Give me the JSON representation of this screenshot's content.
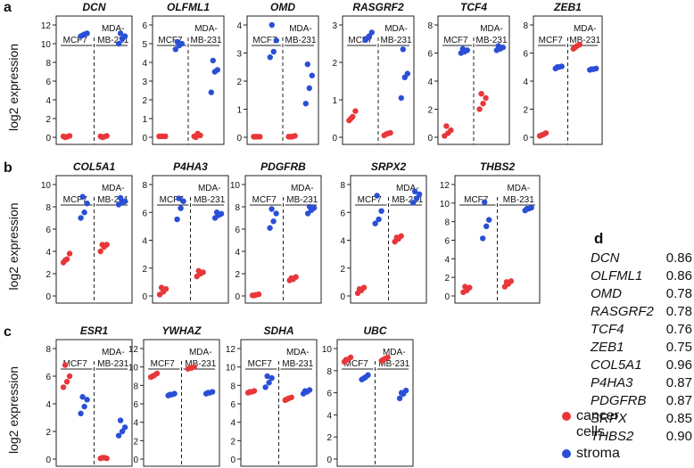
{
  "figure": {
    "ylabel": "log2 expression",
    "group_left": "MCF7",
    "group_right_line1": "MDA-",
    "group_right_line2": "MB-231"
  },
  "legend": {
    "cancer_line1": "cancer",
    "cancer_line2": "cells",
    "stroma": "stroma",
    "cancer_color": "#e8373a",
    "stroma_color": "#2a4fd6"
  },
  "chart_data": [
    {
      "type": "scatter",
      "title": "DCN",
      "panel": "a",
      "ylim": [
        0,
        12
      ],
      "yticks": [
        0,
        2,
        4,
        6,
        8,
        10,
        12
      ],
      "cancer_mcf7": [
        0.1,
        0.05,
        0.15,
        0.0
      ],
      "stroma_mcf7": [
        10.8,
        11.0,
        11.1,
        10.9
      ],
      "cancer_mda": [
        0.1,
        0.05,
        0.15,
        0.0
      ],
      "stroma_mda": [
        10.0,
        10.5,
        10.8,
        11.1
      ]
    },
    {
      "type": "scatter",
      "title": "OLFML1",
      "panel": "a",
      "ylim": [
        0,
        6
      ],
      "yticks": [
        0,
        1,
        2,
        3,
        4,
        5,
        6
      ],
      "cancer_mcf7": [
        0.05,
        0.05,
        0.05,
        0.05
      ],
      "stroma_mcf7": [
        4.7,
        4.9,
        5.0,
        5.1
      ],
      "cancer_mda": [
        0.05,
        0.2,
        0.1,
        0.0
      ],
      "stroma_mda": [
        2.4,
        3.5,
        3.6,
        4.1
      ]
    },
    {
      "type": "scatter",
      "title": "OMD",
      "panel": "a",
      "ylim": [
        0,
        4
      ],
      "yticks": [
        0,
        1,
        2,
        3,
        4
      ],
      "cancer_mcf7": [
        0.02,
        0.02,
        0.02,
        0.02
      ],
      "stroma_mcf7": [
        2.85,
        3.05,
        3.45,
        4.0
      ],
      "cancer_mda": [
        0.02,
        0.02,
        0.05,
        0.02
      ],
      "stroma_mda": [
        1.2,
        1.75,
        2.2,
        2.6
      ]
    },
    {
      "type": "scatter",
      "title": "RASGRF2",
      "panel": "a",
      "ylim": [
        0,
        3
      ],
      "yticks": [
        0,
        1,
        2,
        3
      ],
      "cancer_mcf7": [
        0.45,
        0.55,
        0.7,
        0.5
      ],
      "stroma_mcf7": [
        2.6,
        2.7,
        2.8,
        2.65
      ],
      "cancer_mda": [
        0.05,
        0.1,
        0.12,
        0.08
      ],
      "stroma_mda": [
        1.05,
        1.6,
        1.7,
        2.35
      ]
    },
    {
      "type": "scatter",
      "title": "TCF4",
      "panel": "a",
      "ylim": [
        0,
        8
      ],
      "yticks": [
        0,
        2,
        4,
        6,
        8
      ],
      "cancer_mcf7": [
        0.1,
        0.3,
        0.5,
        0.8
      ],
      "stroma_mcf7": [
        6.0,
        6.1,
        6.2,
        6.3
      ],
      "cancer_mda": [
        2.0,
        2.4,
        2.8,
        3.1
      ],
      "stroma_mda": [
        6.2,
        6.3,
        6.4,
        6.5
      ]
    },
    {
      "type": "scatter",
      "title": "ZEB1",
      "panel": "a",
      "ylim": [
        0,
        8
      ],
      "yticks": [
        0,
        2,
        4,
        6,
        8
      ],
      "cancer_mcf7": [
        0.1,
        0.2,
        0.3,
        0.15
      ],
      "stroma_mcf7": [
        4.9,
        5.0,
        5.05,
        5.0
      ],
      "cancer_mda": [
        6.3,
        6.5,
        6.6,
        6.4
      ],
      "stroma_mda": [
        4.8,
        4.85,
        4.9,
        4.85
      ]
    },
    {
      "type": "scatter",
      "title": "COL5A1",
      "panel": "b",
      "ylim": [
        0,
        10
      ],
      "yticks": [
        0,
        2,
        4,
        6,
        8,
        10
      ],
      "cancer_mcf7": [
        3.0,
        3.3,
        3.8,
        3.2
      ],
      "stroma_mcf7": [
        7.0,
        7.5,
        8.3,
        8.9
      ],
      "cancer_mda": [
        4.0,
        4.4,
        4.6,
        4.6
      ],
      "stroma_mda": [
        8.2,
        8.4,
        8.5,
        8.8
      ]
    },
    {
      "type": "scatter",
      "title": "P4HA3",
      "panel": "b",
      "ylim": [
        0,
        8
      ],
      "yticks": [
        0,
        2,
        4,
        6,
        8
      ],
      "cancer_mcf7": [
        0.1,
        0.3,
        0.5,
        0.6
      ],
      "stroma_mcf7": [
        5.5,
        6.3,
        6.8,
        7.0
      ],
      "cancer_mda": [
        1.4,
        1.6,
        1.7,
        1.8
      ],
      "stroma_mda": [
        5.6,
        5.8,
        5.9,
        6.0
      ]
    },
    {
      "type": "scatter",
      "title": "PDGFRB",
      "panel": "b",
      "ylim": [
        0,
        10
      ],
      "yticks": [
        0,
        2,
        4,
        6,
        8,
        10
      ],
      "cancer_mcf7": [
        0.05,
        0.1,
        0.15,
        0.05
      ],
      "stroma_mcf7": [
        6.1,
        6.7,
        7.4,
        7.8
      ],
      "cancer_mda": [
        1.4,
        1.5,
        1.7,
        1.6
      ],
      "stroma_mda": [
        7.4,
        7.7,
        7.9,
        8.0
      ]
    },
    {
      "type": "scatter",
      "title": "SRPX2",
      "panel": "b",
      "ylim": [
        0,
        8
      ],
      "yticks": [
        0,
        2,
        4,
        6,
        8
      ],
      "cancer_mcf7": [
        0.2,
        0.4,
        0.6,
        0.5
      ],
      "stroma_mcf7": [
        5.2,
        5.5,
        6.1,
        7.2
      ],
      "cancer_mda": [
        3.9,
        4.1,
        4.3,
        4.2
      ],
      "stroma_mda": [
        6.7,
        7.0,
        7.3,
        7.5
      ]
    },
    {
      "type": "scatter",
      "title": "THBS2",
      "panel": "b",
      "ylim": [
        0,
        12
      ],
      "yticks": [
        0,
        2,
        4,
        6,
        8,
        10,
        12
      ],
      "cancer_mcf7": [
        0.4,
        0.6,
        0.9,
        1.0
      ],
      "stroma_mcf7": [
        6.2,
        7.5,
        8.2,
        10.1
      ],
      "cancer_mda": [
        1.0,
        1.3,
        1.6,
        1.5
      ],
      "stroma_mda": [
        9.2,
        9.4,
        9.5,
        9.4
      ]
    },
    {
      "type": "scatter",
      "title": "ESR1",
      "panel": "c",
      "ylim": [
        0,
        8
      ],
      "yticks": [
        0,
        2,
        4,
        6,
        8
      ],
      "cancer_mcf7": [
        5.2,
        5.6,
        6.0,
        6.8
      ],
      "stroma_mcf7": [
        3.3,
        3.8,
        4.3,
        4.5
      ],
      "cancer_mda": [
        0.05,
        0.1,
        0.05,
        0.1
      ],
      "stroma_mda": [
        1.7,
        2.0,
        2.3,
        2.8
      ]
    },
    {
      "type": "scatter",
      "title": "YWHAZ",
      "panel": "c",
      "ylim": [
        0,
        12
      ],
      "yticks": [
        0,
        2,
        4,
        6,
        8,
        10,
        12
      ],
      "cancer_mcf7": [
        8.9,
        9.1,
        9.3,
        9.0
      ],
      "stroma_mcf7": [
        6.9,
        7.0,
        7.1,
        7.0
      ],
      "cancer_mda": [
        9.8,
        9.9,
        10.0,
        9.9
      ],
      "stroma_mda": [
        7.1,
        7.2,
        7.3,
        7.2
      ]
    },
    {
      "type": "scatter",
      "title": "SDHA",
      "panel": "c",
      "ylim": [
        0,
        12
      ],
      "yticks": [
        0,
        2,
        4,
        6,
        8,
        10,
        12
      ],
      "cancer_mcf7": [
        7.2,
        7.3,
        7.4,
        7.3
      ],
      "stroma_mcf7": [
        7.8,
        8.3,
        8.8,
        9.0
      ],
      "cancer_mda": [
        6.4,
        6.6,
        6.7,
        6.5
      ],
      "stroma_mda": [
        7.1,
        7.3,
        7.5,
        7.4
      ]
    },
    {
      "type": "scatter",
      "title": "UBC",
      "panel": "c",
      "ylim": [
        0,
        10
      ],
      "yticks": [
        0,
        2,
        4,
        6,
        8,
        10
      ],
      "cancer_mcf7": [
        8.8,
        9.0,
        9.2,
        9.0
      ],
      "stroma_mcf7": [
        7.2,
        7.4,
        7.6,
        7.3
      ],
      "cancer_mda": [
        8.9,
        9.1,
        9.2,
        9.0
      ],
      "stroma_mda": [
        5.5,
        5.9,
        6.2,
        6.0
      ]
    }
  ],
  "correlations": {
    "label": "d",
    "rows": [
      {
        "gene": "DCN",
        "value": "0.86"
      },
      {
        "gene": "OLFML1",
        "value": "0.86"
      },
      {
        "gene": "OMD",
        "value": "0.78"
      },
      {
        "gene": "RASGRF2",
        "value": "0.78"
      },
      {
        "gene": "TCF4",
        "value": "0.76"
      },
      {
        "gene": "ZEB1",
        "value": "0.75"
      },
      {
        "gene": "COL5A1",
        "value": "0.96"
      },
      {
        "gene": "P4HA3",
        "value": "0.87"
      },
      {
        "gene": "PDGFRB",
        "value": "0.87"
      },
      {
        "gene": "SRPX",
        "value": "0.85"
      },
      {
        "gene": "THBS2",
        "value": "0.90"
      }
    ]
  }
}
